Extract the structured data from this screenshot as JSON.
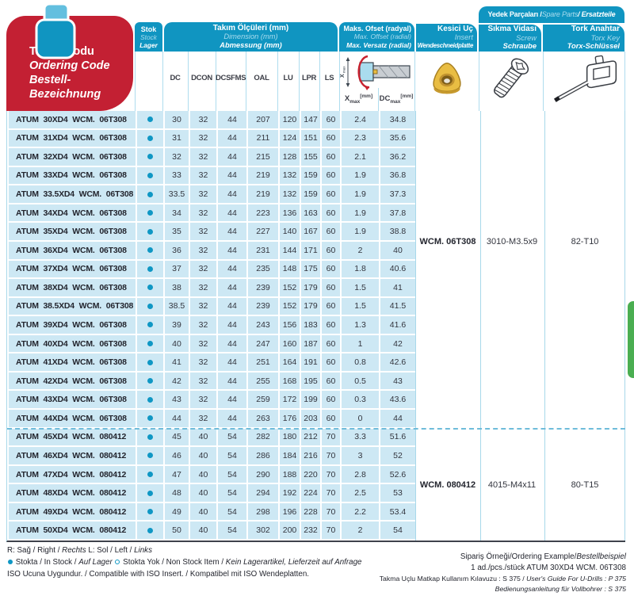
{
  "colors": {
    "accent_blue": "#1095c1",
    "row_blue": "#cde8f4",
    "red": "#c32033",
    "green_tab": "#4aae51",
    "insert_yellow": "#e9bd43"
  },
  "header": {
    "ordering_code": {
      "tr": "Takım Kodu",
      "en": "Ordering Code",
      "de": "Bestell-Bezeichnung"
    },
    "stock": {
      "tr": "Stok",
      "en": "Stock",
      "de": "Lager"
    },
    "dimensions": {
      "tr": "Takım Ölçüleri (mm)",
      "en": "Dimension (mm)",
      "de": "Abmessung (mm)"
    },
    "dim_columns": [
      "DC",
      "DCON",
      "DCSFMS",
      "OAL",
      "LU",
      "LPR",
      "LS"
    ],
    "offset": {
      "tr": "Maks. Ofset (radyal)",
      "en": "Max. Offset (radial)",
      "de": "Max. Versatz (radial)"
    },
    "offset_cols": [
      {
        "base": "X",
        "sub": "max",
        "unit": "[mm]"
      },
      {
        "base": "DC",
        "sub": "max",
        "unit": "[mm]"
      }
    ],
    "offset_diagram": {
      "label_base": "X",
      "label_sub": "max"
    },
    "insert": {
      "tr": "Kesici Uç",
      "en": "Insert",
      "de": "Wendeschneidplatte"
    },
    "spare_band": {
      "tr": "Yedek Parçaları /",
      "en": " Spare Parts ",
      "de": "/ Ersatzteile"
    },
    "screw": {
      "tr": "Sıkma Vidası",
      "en": "Screw",
      "de": "Schraube"
    },
    "torx": {
      "tr": "Tork Anahtar",
      "en": "Torx Key",
      "de": "Torx-Schlüssel"
    }
  },
  "rows": [
    {
      "code": "ATUM 30XD4 WCM. 06T308",
      "stock": true,
      "dc": "30",
      "dcon": "32",
      "dcsfms": "44",
      "oal": "207",
      "lu": "120",
      "lpr": "147",
      "ls": "60",
      "xmax": "2.4",
      "dcmax": "34.8"
    },
    {
      "code": "ATUM 31XD4 WCM. 06T308",
      "stock": true,
      "dc": "31",
      "dcon": "32",
      "dcsfms": "44",
      "oal": "211",
      "lu": "124",
      "lpr": "151",
      "ls": "60",
      "xmax": "2.3",
      "dcmax": "35.6"
    },
    {
      "code": "ATUM 32XD4 WCM. 06T308",
      "stock": true,
      "dc": "32",
      "dcon": "32",
      "dcsfms": "44",
      "oal": "215",
      "lu": "128",
      "lpr": "155",
      "ls": "60",
      "xmax": "2.1",
      "dcmax": "36.2"
    },
    {
      "code": "ATUM 33XD4 WCM. 06T308",
      "stock": true,
      "dc": "33",
      "dcon": "32",
      "dcsfms": "44",
      "oal": "219",
      "lu": "132",
      "lpr": "159",
      "ls": "60",
      "xmax": "1.9",
      "dcmax": "36.8"
    },
    {
      "code": "ATUM 33.5XD4 WCM. 06T308",
      "stock": true,
      "dc": "33.5",
      "dcon": "32",
      "dcsfms": "44",
      "oal": "219",
      "lu": "132",
      "lpr": "159",
      "ls": "60",
      "xmax": "1.9",
      "dcmax": "37.3"
    },
    {
      "code": "ATUM 34XD4 WCM. 06T308",
      "stock": true,
      "dc": "34",
      "dcon": "32",
      "dcsfms": "44",
      "oal": "223",
      "lu": "136",
      "lpr": "163",
      "ls": "60",
      "xmax": "1.9",
      "dcmax": "37.8"
    },
    {
      "code": "ATUM 35XD4 WCM. 06T308",
      "stock": true,
      "dc": "35",
      "dcon": "32",
      "dcsfms": "44",
      "oal": "227",
      "lu": "140",
      "lpr": "167",
      "ls": "60",
      "xmax": "1.9",
      "dcmax": "38.8"
    },
    {
      "code": "ATUM 36XD4 WCM. 06T308",
      "stock": true,
      "dc": "36",
      "dcon": "32",
      "dcsfms": "44",
      "oal": "231",
      "lu": "144",
      "lpr": "171",
      "ls": "60",
      "xmax": "2",
      "dcmax": "40"
    },
    {
      "code": "ATUM 37XD4 WCM. 06T308",
      "stock": true,
      "dc": "37",
      "dcon": "32",
      "dcsfms": "44",
      "oal": "235",
      "lu": "148",
      "lpr": "175",
      "ls": "60",
      "xmax": "1.8",
      "dcmax": "40.6"
    },
    {
      "code": "ATUM 38XD4 WCM. 06T308",
      "stock": true,
      "dc": "38",
      "dcon": "32",
      "dcsfms": "44",
      "oal": "239",
      "lu": "152",
      "lpr": "179",
      "ls": "60",
      "xmax": "1.5",
      "dcmax": "41"
    },
    {
      "code": "ATUM 38.5XD4 WCM. 06T308",
      "stock": true,
      "dc": "38.5",
      "dcon": "32",
      "dcsfms": "44",
      "oal": "239",
      "lu": "152",
      "lpr": "179",
      "ls": "60",
      "xmax": "1.5",
      "dcmax": "41.5"
    },
    {
      "code": "ATUM 39XD4 WCM. 06T308",
      "stock": true,
      "dc": "39",
      "dcon": "32",
      "dcsfms": "44",
      "oal": "243",
      "lu": "156",
      "lpr": "183",
      "ls": "60",
      "xmax": "1.3",
      "dcmax": "41.6"
    },
    {
      "code": "ATUM 40XD4 WCM. 06T308",
      "stock": true,
      "dc": "40",
      "dcon": "32",
      "dcsfms": "44",
      "oal": "247",
      "lu": "160",
      "lpr": "187",
      "ls": "60",
      "xmax": "1",
      "dcmax": "42"
    },
    {
      "code": "ATUM 41XD4 WCM. 06T308",
      "stock": true,
      "dc": "41",
      "dcon": "32",
      "dcsfms": "44",
      "oal": "251",
      "lu": "164",
      "lpr": "191",
      "ls": "60",
      "xmax": "0.8",
      "dcmax": "42.6"
    },
    {
      "code": "ATUM 42XD4 WCM. 06T308",
      "stock": true,
      "dc": "42",
      "dcon": "32",
      "dcsfms": "44",
      "oal": "255",
      "lu": "168",
      "lpr": "195",
      "ls": "60",
      "xmax": "0.5",
      "dcmax": "43"
    },
    {
      "code": "ATUM 43XD4 WCM. 06T308",
      "stock": true,
      "dc": "43",
      "dcon": "32",
      "dcsfms": "44",
      "oal": "259",
      "lu": "172",
      "lpr": "199",
      "ls": "60",
      "xmax": "0.3",
      "dcmax": "43.6"
    },
    {
      "code": "ATUM 44XD4 WCM. 06T308",
      "stock": true,
      "dc": "44",
      "dcon": "32",
      "dcsfms": "44",
      "oal": "263",
      "lu": "176",
      "lpr": "203",
      "ls": "60",
      "xmax": "0",
      "dcmax": "44"
    },
    {
      "code": "ATUM 45XD4 WCM. 080412",
      "stock": true,
      "dc": "45",
      "dcon": "40",
      "dcsfms": "54",
      "oal": "282",
      "lu": "180",
      "lpr": "212",
      "ls": "70",
      "xmax": "3.3",
      "dcmax": "51.6"
    },
    {
      "code": "ATUM 46XD4 WCM. 080412",
      "stock": true,
      "dc": "46",
      "dcon": "40",
      "dcsfms": "54",
      "oal": "286",
      "lu": "184",
      "lpr": "216",
      "ls": "70",
      "xmax": "3",
      "dcmax": "52"
    },
    {
      "code": "ATUM 47XD4 WCM. 080412",
      "stock": true,
      "dc": "47",
      "dcon": "40",
      "dcsfms": "54",
      "oal": "290",
      "lu": "188",
      "lpr": "220",
      "ls": "70",
      "xmax": "2.8",
      "dcmax": "52.6"
    },
    {
      "code": "ATUM 48XD4 WCM. 080412",
      "stock": true,
      "dc": "48",
      "dcon": "40",
      "dcsfms": "54",
      "oal": "294",
      "lu": "192",
      "lpr": "224",
      "ls": "70",
      "xmax": "2.5",
      "dcmax": "53"
    },
    {
      "code": "ATUM 49XD4 WCM. 080412",
      "stock": true,
      "dc": "49",
      "dcon": "40",
      "dcsfms": "54",
      "oal": "298",
      "lu": "196",
      "lpr": "228",
      "ls": "70",
      "xmax": "2.2",
      "dcmax": "53.4"
    },
    {
      "code": "ATUM 50XD4 WCM. 080412",
      "stock": true,
      "dc": "50",
      "dcon": "40",
      "dcsfms": "54",
      "oal": "302",
      "lu": "200",
      "lpr": "232",
      "ls": "70",
      "xmax": "2",
      "dcmax": "54"
    }
  ],
  "groups": [
    {
      "insert": "WCM. 06T308",
      "screw": "3010-M3.5x9",
      "torx": "82-T10"
    },
    {
      "insert": "WCM. 080412",
      "screw": "4015-M4x11",
      "torx": "80-T15"
    }
  ],
  "footer": {
    "left_lines": [
      [
        {
          "t": "R: Sağ / Right / "
        },
        {
          "t": "Rechts",
          "i": true
        },
        {
          "t": "  L: Sol / Left / "
        },
        {
          "t": "Links",
          "i": true
        }
      ],
      [
        {
          "dot": "filled"
        },
        {
          "t": " Stokta / In Stock / "
        },
        {
          "t": "Auf Lager",
          "i": true
        },
        {
          "t": "   "
        },
        {
          "dot": "open"
        },
        {
          "t": " Stokta Yok / Non Stock Item / "
        },
        {
          "t": "Kein Lagerartikel, Lieferzeit auf Anfrage",
          "i": true
        }
      ],
      [
        {
          "t": "ISO Ucuna Uygundur. / Compatible with ISO Insert. / Kompatibel mit ISO Wendeplatten."
        }
      ]
    ],
    "right_lines": [
      [
        {
          "t": "Sipariş Örneği/Ordering Example/"
        },
        {
          "t": "Bestellbeispiel",
          "i": true
        }
      ],
      [
        {
          "t": "1 ad./pcs./stück ATUM 30XD4 WCM. 06T308"
        }
      ],
      [
        {
          "t": "Takma Uçlu Matkap Kullanım Kılavuzu : S 375 / "
        },
        {
          "t": "User's Guide For U-Drills : P 375",
          "i": true
        }
      ],
      [
        {
          "t": "Bedienungsanleitung für Vollbohrer : S 375",
          "i": true
        }
      ]
    ]
  }
}
